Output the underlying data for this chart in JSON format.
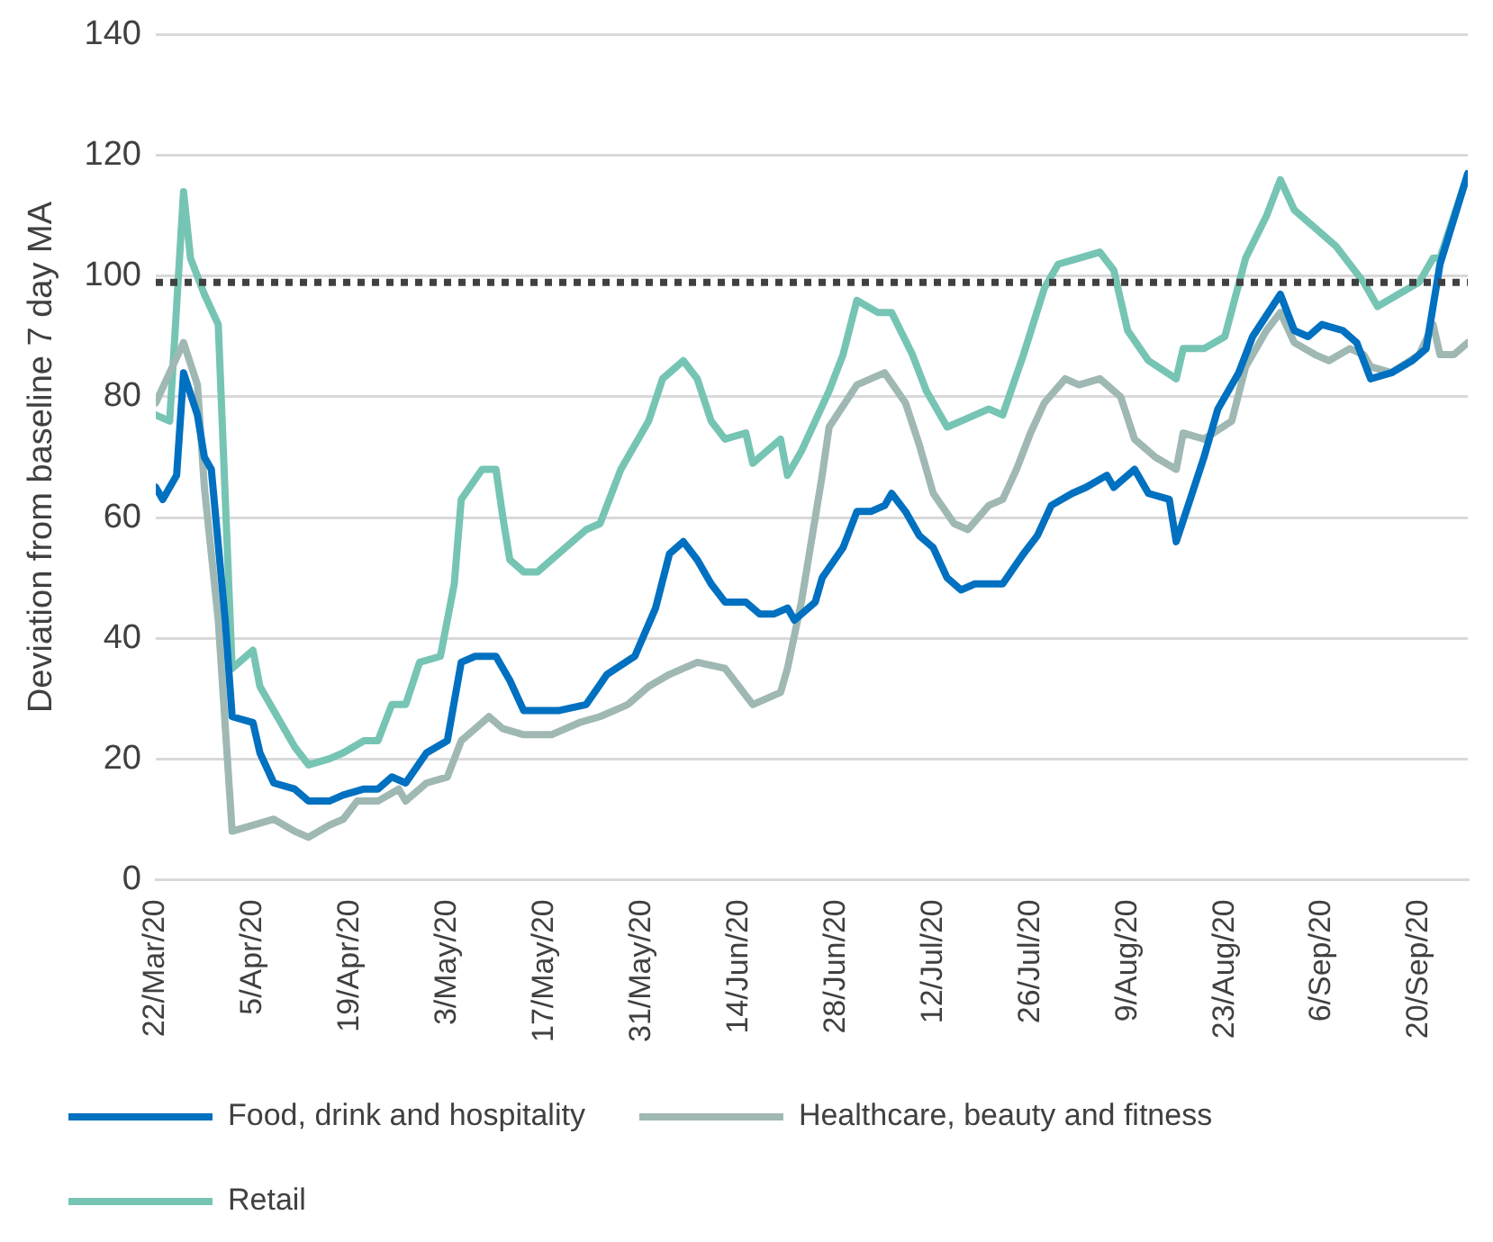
{
  "chart_data": {
    "type": "line",
    "ylabel": "Deviation from baseline 7 day MA",
    "xlim": [
      "--03-22",
      "--09-27"
    ],
    "xticks": [
      {
        "value": "--03-22",
        "label": "22/Mar/20"
      },
      {
        "value": "--04-05",
        "label": "5/Apr/20"
      },
      {
        "value": "--04-19",
        "label": "19/Apr/20"
      },
      {
        "value": "--05-03",
        "label": "3/May/20"
      },
      {
        "value": "--05-17",
        "label": "17/May/20"
      },
      {
        "value": "--05-31",
        "label": "31/May/20"
      },
      {
        "value": "--06-14",
        "label": "14/Jun/20"
      },
      {
        "value": "--06-28",
        "label": "28/Jun/20"
      },
      {
        "value": "--07-12",
        "label": "12/Jul/20"
      },
      {
        "value": "--07-26",
        "label": "26/Jul/20"
      },
      {
        "value": "--08-09",
        "label": "9/Aug/20"
      },
      {
        "value": "--08-23",
        "label": "23/Aug/20"
      },
      {
        "value": "--09-06",
        "label": "6/Sep/20"
      },
      {
        "value": "--09-20",
        "label": "20/Sep/20"
      }
    ],
    "ylim": [
      0,
      140
    ],
    "yticks": [
      0,
      20,
      40,
      60,
      80,
      100,
      120,
      140
    ],
    "grid": "y",
    "legend": "bottom",
    "marker": "none",
    "line_style": "solid",
    "ref_lines": [
      {
        "axis": "y",
        "value": 99,
        "color": "#404040",
        "line_style": "dotted"
      }
    ],
    "series": [
      {
        "name": "Food, drink and hospitality",
        "color": "#0070c0",
        "x": [
          "--03-22",
          "--03-23",
          "--03-25",
          "--03-26",
          "--03-28",
          "--03-29",
          "--03-30",
          "--04-01",
          "--04-02",
          "--04-05",
          "--04-06",
          "--04-08",
          "--04-11",
          "--04-13",
          "--04-16",
          "--04-18",
          "--04-21",
          "--04-23",
          "--04-25",
          "--04-27",
          "--04-30",
          "--05-03",
          "--05-05",
          "--05-07",
          "--05-10",
          "--05-12",
          "--05-14",
          "--05-16",
          "--05-19",
          "--05-23",
          "--05-26",
          "--05-30",
          "--06-02",
          "--06-04",
          "--06-06",
          "--06-08",
          "--06-10",
          "--06-12",
          "--06-15",
          "--06-17",
          "--06-19",
          "--06-21",
          "--06-22",
          "--06-25",
          "--06-26",
          "--06-29",
          "--07-01",
          "--07-03",
          "--07-05",
          "--07-06",
          "--07-08",
          "--07-10",
          "--07-12",
          "--07-14",
          "--07-16",
          "--07-18",
          "--07-22",
          "--07-25",
          "--07-27",
          "--07-29",
          "--08-01",
          "--08-03",
          "--08-06",
          "--08-07",
          "--08-10",
          "--08-12",
          "--08-15",
          "--08-16",
          "--08-18",
          "--08-20",
          "--08-22",
          "--08-25",
          "--08-27",
          "--08-31",
          "--09-02",
          "--09-04",
          "--09-06",
          "--09-09",
          "--09-11",
          "--09-13",
          "--09-16",
          "--09-19",
          "--09-21",
          "--09-23",
          "--09-27"
        ],
        "values": [
          65,
          63,
          67,
          84,
          77,
          70,
          68,
          43,
          27,
          26,
          21,
          16,
          15,
          13,
          13,
          14,
          15,
          15,
          17,
          16,
          21,
          23,
          36,
          37,
          37,
          33,
          28,
          28,
          28,
          29,
          34,
          37,
          45,
          54,
          56,
          53,
          49,
          46,
          46,
          44,
          44,
          45,
          43,
          46,
          50,
          55,
          61,
          61,
          62,
          64,
          61,
          57,
          55,
          50,
          48,
          49,
          49,
          54,
          57,
          62,
          64,
          65,
          67,
          65,
          68,
          64,
          63,
          56,
          63,
          70,
          78,
          84,
          90,
          97,
          91,
          90,
          92,
          91,
          89,
          83,
          84,
          86,
          88,
          102,
          117
        ]
      },
      {
        "name": "Healthcare, beauty and fitness",
        "color": "#9fb8b3",
        "x": [
          "--03-22",
          "--03-26",
          "--03-28",
          "--03-29",
          "--03-31",
          "--04-02",
          "--04-05",
          "--04-08",
          "--04-11",
          "--04-13",
          "--04-16",
          "--04-18",
          "--04-20",
          "--04-23",
          "--04-26",
          "--04-27",
          "--04-30",
          "--05-03",
          "--05-05",
          "--05-08",
          "--05-09",
          "--05-11",
          "--05-14",
          "--05-18",
          "--05-22",
          "--05-25",
          "--05-29",
          "--06-01",
          "--06-04",
          "--06-08",
          "--06-12",
          "--06-14",
          "--06-16",
          "--06-20",
          "--06-21",
          "--06-23",
          "--06-25",
          "--06-26",
          "--06-27",
          "--07-01",
          "--07-03",
          "--07-05",
          "--07-08",
          "--07-10",
          "--07-12",
          "--07-15",
          "--07-17",
          "--07-20",
          "--07-22",
          "--07-24",
          "--07-26",
          "--07-28",
          "--07-31",
          "--08-02",
          "--08-05",
          "--08-08",
          "--08-10",
          "--08-13",
          "--08-16",
          "--08-17",
          "--08-20",
          "--08-24",
          "--08-26",
          "--08-29",
          "--08-31",
          "--09-02",
          "--09-05",
          "--09-07",
          "--09-10",
          "--09-12",
          "--09-13",
          "--09-16",
          "--09-20",
          "--09-22",
          "--09-23",
          "--09-25",
          "--09-27"
        ],
        "values": [
          79,
          89,
          82,
          65,
          43,
          8,
          9,
          10,
          8,
          7,
          9,
          10,
          13,
          13,
          15,
          13,
          16,
          17,
          23,
          26,
          27,
          25,
          24,
          24,
          26,
          27,
          29,
          32,
          34,
          36,
          35,
          32,
          29,
          31,
          35,
          46,
          60,
          67,
          75,
          82,
          83,
          84,
          79,
          72,
          64,
          59,
          58,
          62,
          63,
          68,
          74,
          79,
          83,
          82,
          83,
          80,
          73,
          70,
          68,
          74,
          73,
          76,
          85,
          91,
          94,
          89,
          87,
          86,
          88,
          87,
          85,
          84,
          87,
          92,
          87,
          87,
          89
        ]
      },
      {
        "name": "Retail",
        "color": "#76c4b4",
        "x": [
          "--03-22",
          "--03-24",
          "--03-26",
          "--03-27",
          "--03-29",
          "--03-31",
          "--04-02",
          "--04-04",
          "--04-05",
          "--04-06",
          "--04-09",
          "--04-11",
          "--04-13",
          "--04-16",
          "--04-18",
          "--04-21",
          "--04-23",
          "--04-25",
          "--04-27",
          "--04-29",
          "--05-02",
          "--05-04",
          "--05-05",
          "--05-08",
          "--05-10",
          "--05-11",
          "--05-12",
          "--05-14",
          "--05-16",
          "--05-20",
          "--05-23",
          "--05-25",
          "--05-28",
          "--06-01",
          "--06-03",
          "--06-06",
          "--06-08",
          "--06-10",
          "--06-12",
          "--06-15",
          "--06-16",
          "--06-20",
          "--06-21",
          "--06-23",
          "--06-27",
          "--06-29",
          "--07-01",
          "--07-04",
          "--07-06",
          "--07-09",
          "--07-11",
          "--07-14",
          "--07-16",
          "--07-20",
          "--07-22",
          "--07-25",
          "--07-28",
          "--07-30",
          "--08-02",
          "--08-05",
          "--08-07",
          "--08-09",
          "--08-12",
          "--08-16",
          "--08-17",
          "--08-20",
          "--08-23",
          "--08-26",
          "--08-29",
          "--08-31",
          "--09-02",
          "--09-05",
          "--09-08",
          "--09-12",
          "--09-14",
          "--09-17",
          "--09-20",
          "--09-22",
          "--09-23",
          "--09-27"
        ],
        "values": [
          77,
          76,
          114,
          103,
          97,
          92,
          35,
          37,
          38,
          32,
          26,
          22,
          19,
          20,
          21,
          23,
          23,
          29,
          29,
          36,
          37,
          49,
          63,
          68,
          68,
          60,
          53,
          51,
          51,
          55,
          58,
          59,
          68,
          76,
          83,
          86,
          83,
          76,
          73,
          74,
          69,
          73,
          67,
          71,
          81,
          87,
          96,
          94,
          94,
          87,
          81,
          75,
          76,
          78,
          77,
          87,
          98,
          102,
          103,
          104,
          101,
          91,
          86,
          83,
          88,
          88,
          90,
          103,
          110,
          116,
          111,
          108,
          105,
          99,
          95,
          97,
          99,
          103,
          103,
          117
        ]
      }
    ]
  }
}
